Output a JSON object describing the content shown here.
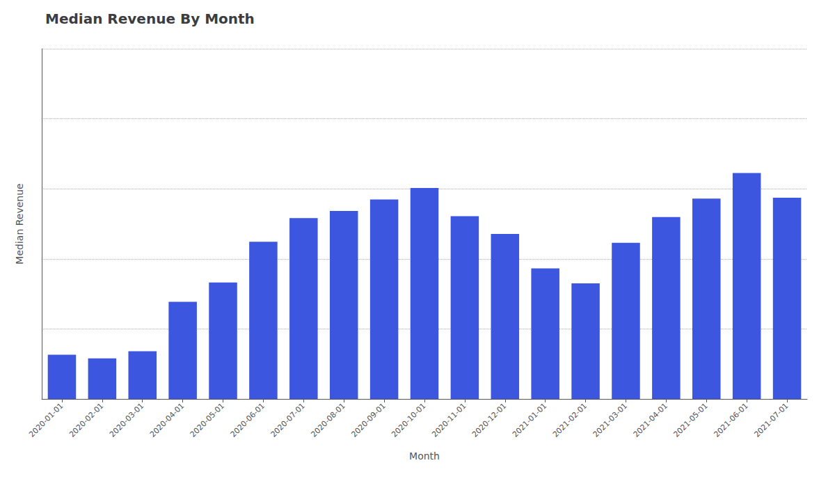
{
  "chart_data": {
    "type": "bar",
    "title": "Median Revenue By Month",
    "xlabel": "Month",
    "ylabel": "Median Revenue",
    "categories": [
      "2020-01-01",
      "2020-02-01",
      "2020-03-01",
      "2020-04-01",
      "2020-05-01",
      "2020-06-01",
      "2020-07-01",
      "2020-08-01",
      "2020-09-01",
      "2020-10-01",
      "2020-11-01",
      "2020-12-01",
      "2021-01-01",
      "2021-02-01",
      "2021-03-01",
      "2021-04-01",
      "2021-05-01",
      "2021-06-01",
      "2021-07-01"
    ],
    "values": [
      500,
      460,
      540,
      1100,
      1320,
      1780,
      2050,
      2130,
      2260,
      2390,
      2070,
      1870,
      1480,
      1310,
      1770,
      2060,
      2270,
      2560,
      2280
    ],
    "color": "#3d56e0",
    "ylim": [
      0,
      3968
    ],
    "yticks": [
      793.6,
      1587.2,
      2380.8,
      3174.4,
      3968
    ],
    "grid": true,
    "tick_labels": "x"
  }
}
